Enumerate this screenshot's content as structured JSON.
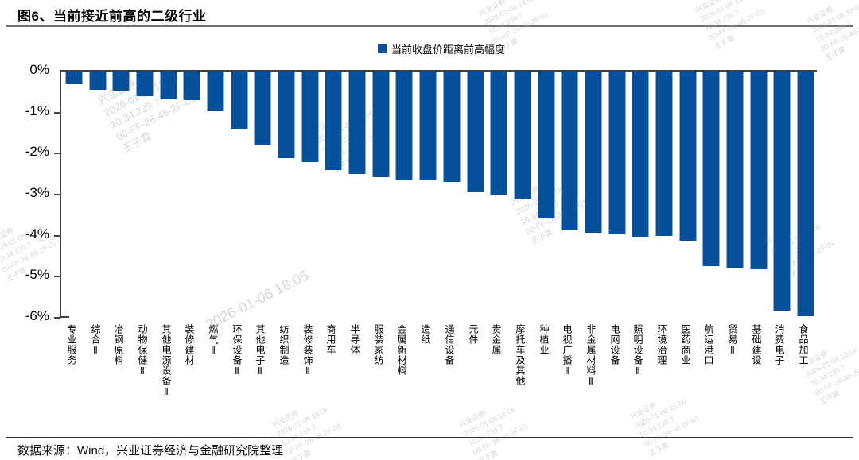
{
  "header": {
    "title": "图6、当前接近前高的二级行业"
  },
  "legend": {
    "label": "当前收盘价距离前高幅度"
  },
  "footer": {
    "source": "数据来源：Wind，兴业证券经济与金融研究院整理"
  },
  "colors": {
    "bar": "#07509c",
    "bar_edge": "#8eaacd",
    "axis": "#3f3f3f",
    "watermark": "#b5b5b5"
  },
  "watermark": {
    "lines": [
      "兴业证券",
      "2026-01-06 18:06",
      "10.34.239.7",
      "00-FF-26-46-2F-01",
      "王子霄"
    ],
    "big_line": "2026-01-06 18:05"
  },
  "chart_data": {
    "type": "bar",
    "title": "图6、当前接近前高的二级行业",
    "legend": [
      "当前收盘价距离前高幅度"
    ],
    "ylabel": "",
    "xlabel": "",
    "ylim": [
      -6,
      0
    ],
    "ytick_labels": [
      "0%",
      "-1%",
      "-2%",
      "-3%",
      "-4%",
      "-5%",
      "-6%"
    ],
    "grid": false,
    "legend_position": "top-center",
    "categories": [
      "专业服务",
      "综合Ⅱ",
      "冶钢原料",
      "动物保健Ⅱ",
      "其他电源设备Ⅱ",
      "装修建材",
      "燃气Ⅱ",
      "环保设备Ⅱ",
      "其他电子Ⅱ",
      "纺织制造",
      "装修装饰Ⅱ",
      "商用车",
      "半导体",
      "服装家纺",
      "金属新材料",
      "造纸",
      "通信设备",
      "元件",
      "贵金属",
      "摩托车及其他",
      "种植业",
      "电视广播Ⅱ",
      "非金属材料Ⅱ",
      "电网设备",
      "照明设备Ⅱ",
      "环境治理",
      "医药商业",
      "航运港口",
      "贸易Ⅱ",
      "基础建设",
      "消费电子",
      "食品加工"
    ],
    "values": [
      -0.31,
      -0.45,
      -0.46,
      -0.6,
      -0.68,
      -0.7,
      -0.97,
      -1.41,
      -1.79,
      -2.11,
      -2.21,
      -2.4,
      -2.5,
      -2.58,
      -2.65,
      -2.66,
      -2.69,
      -2.95,
      -3.0,
      -3.1,
      -3.58,
      -3.87,
      -3.92,
      -3.97,
      -4.02,
      -4.0,
      -4.13,
      -4.75,
      -4.78,
      -4.82,
      -5.83,
      -5.96
    ]
  }
}
